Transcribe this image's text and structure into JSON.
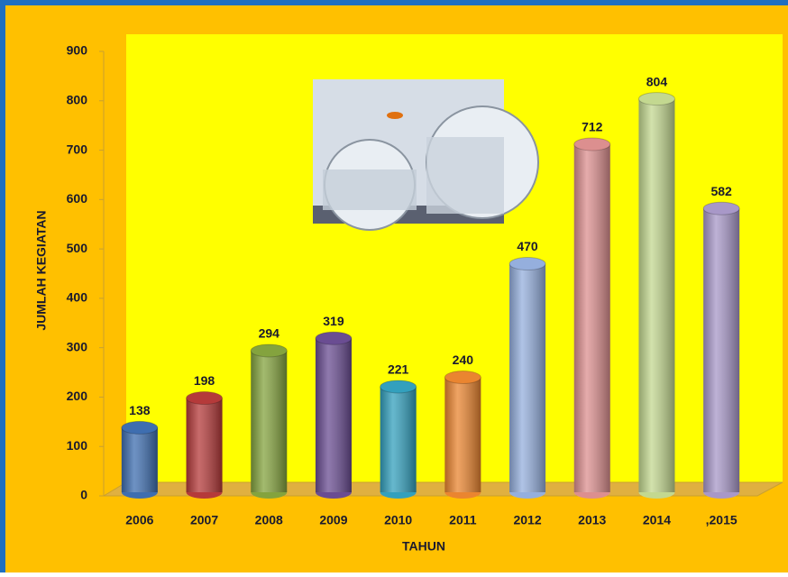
{
  "chart_data": {
    "type": "bar",
    "x_label": "TAHUN",
    "y_label": "JUMLAH KEGIATAN",
    "categories": [
      "2006",
      "2007",
      "2008",
      "2009",
      "2010",
      "2011",
      "2012",
      "2013",
      "2014",
      ",2015"
    ],
    "values": [
      138,
      198,
      294,
      319,
      221,
      240,
      470,
      712,
      804,
      582
    ],
    "colors": [
      "#3e6eb0",
      "#b53a3a",
      "#84a33e",
      "#6a4d92",
      "#33a0bd",
      "#ea8530",
      "#95afdd",
      "#dc8f8f",
      "#c3d890",
      "#a898c8"
    ],
    "ylim": [
      0,
      900
    ],
    "yticks": [
      0,
      100,
      200,
      300,
      400,
      500,
      600,
      700,
      800,
      900
    ]
  }
}
